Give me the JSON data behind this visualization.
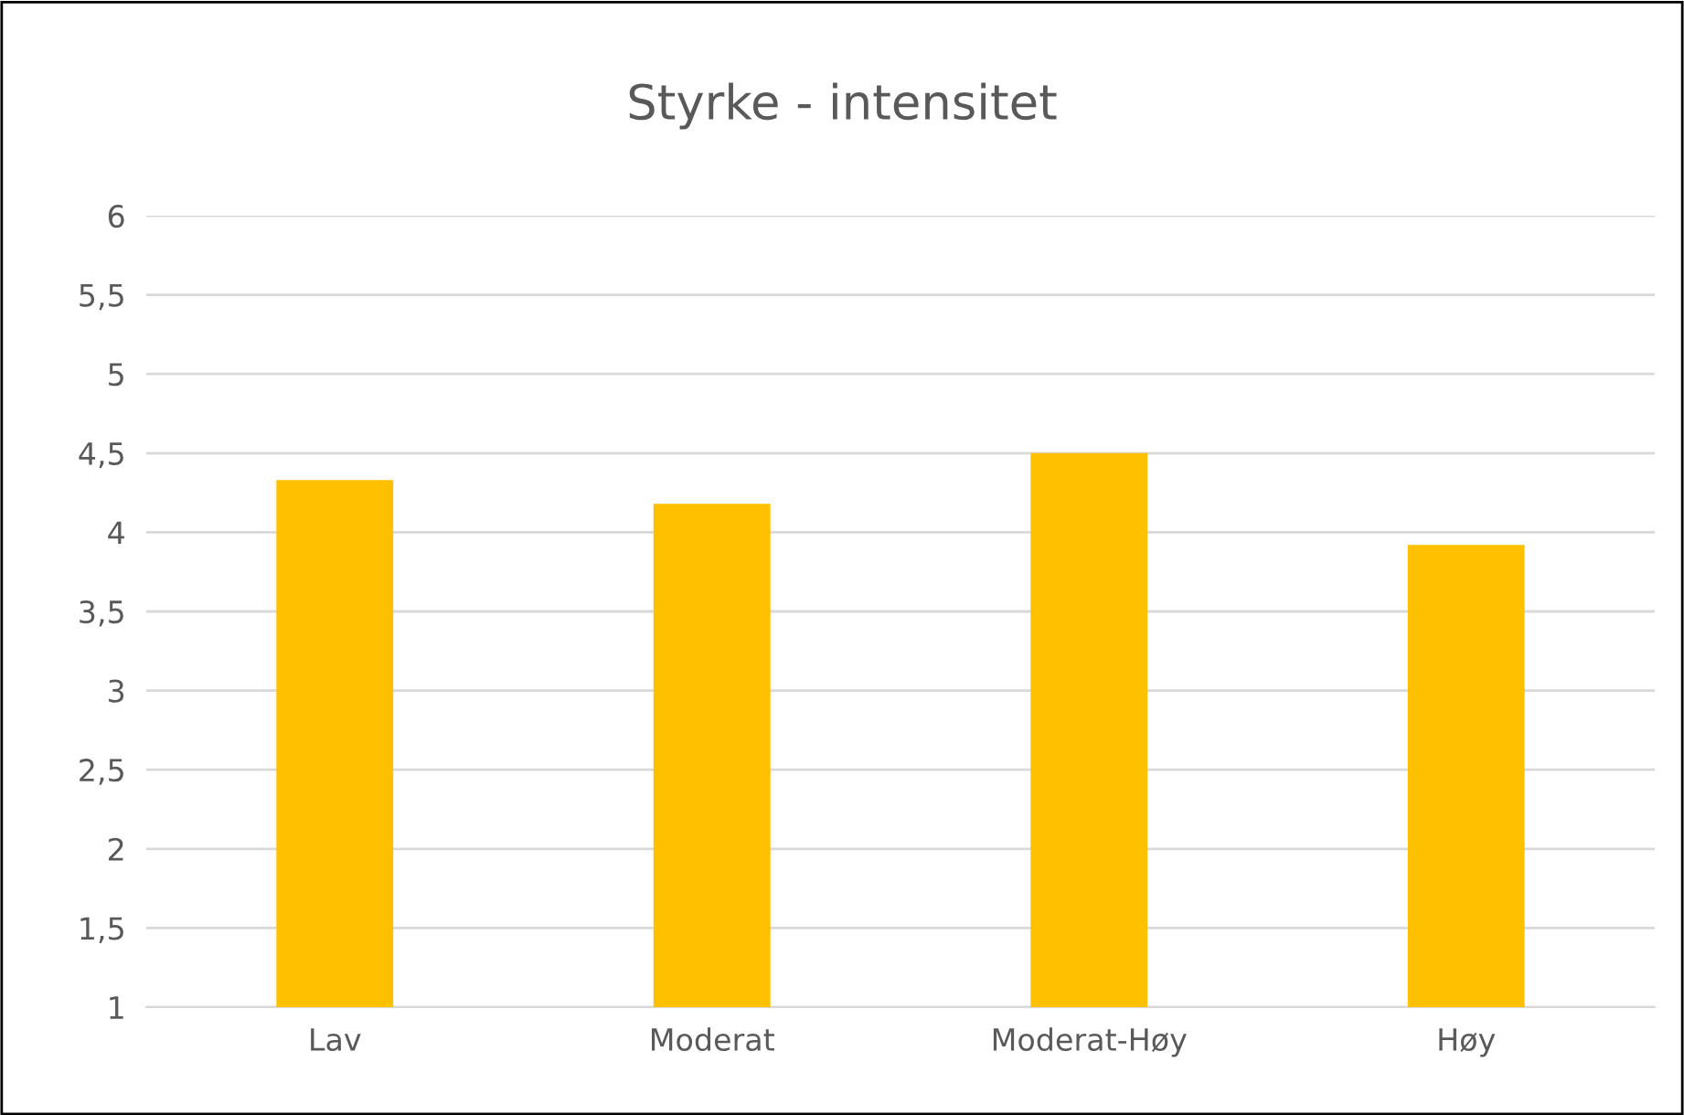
{
  "chart_data": {
    "type": "bar",
    "title": "Styrke - intensitet",
    "categories": [
      "Lav",
      "Moderat",
      "Moderat-Høy",
      "Høy"
    ],
    "values": [
      4.33,
      4.18,
      4.5,
      3.92
    ],
    "color": "#ffc000",
    "ylim": [
      1,
      6
    ],
    "yticks": [
      1,
      {
        "value": 1.5,
        "label": "1,5"
      },
      2,
      {
        "value": 2.5,
        "label": "2,5"
      },
      3,
      {
        "value": 3.5,
        "label": "3,5"
      },
      4,
      {
        "value": 4.5,
        "label": "4,5"
      },
      5,
      {
        "value": 5.5,
        "label": "5,5"
      },
      6
    ],
    "grid": "y",
    "legend": false
  }
}
